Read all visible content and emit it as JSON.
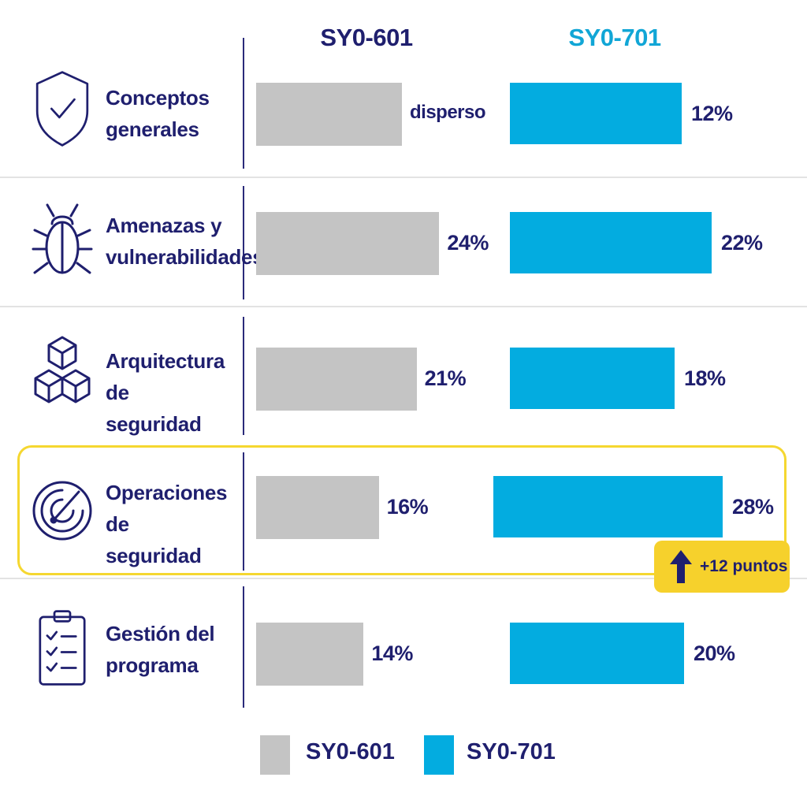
{
  "chart_data": {
    "type": "bar",
    "categories": [
      "Conceptos generales",
      "Amenazas y vulnerabilidades",
      "Arquitectura de seguridad",
      "Operaciones de seguridad",
      "Gestión del programa"
    ],
    "series": [
      {
        "name": "SY0-601",
        "values": [
          null,
          24,
          21,
          16,
          14
        ],
        "labels": [
          "disperso",
          "24%",
          "21%",
          "16%",
          "14%"
        ],
        "color": "#c4c4c4"
      },
      {
        "name": "SY0-701",
        "values": [
          12,
          22,
          18,
          28,
          20
        ],
        "labels": [
          "12%",
          "22%",
          "18%",
          "28%",
          "20%"
        ],
        "color": "#03ace0"
      }
    ],
    "units": "%",
    "annotation": "+12 puntos",
    "highlighted_category": "Operaciones de seguridad",
    "legend_position": "bottom"
  },
  "header": {
    "col_a": "SY0-601",
    "col_b": "SY0-701"
  },
  "rows": [
    {
      "label_line1": "Conceptos",
      "label_line2": "generales",
      "icon": "shield-check-icon"
    },
    {
      "label_line1": "Amenazas y",
      "label_line2": "vulnerabilidades",
      "icon": "bug-icon"
    },
    {
      "label_line1": "Arquitectura de",
      "label_line2": "seguridad",
      "icon": "cubes-icon"
    },
    {
      "label_line1": "Operaciones de",
      "label_line2": "seguridad",
      "icon": "radar-icon"
    },
    {
      "label_line1": "Gestión del",
      "label_line2": "programa",
      "icon": "clipboard-checklist-icon"
    }
  ],
  "legend": {
    "a": "SY0-601",
    "b": "SY0-701"
  },
  "colors": {
    "navy": "#1f1f6e",
    "gray": "#c4c4c4",
    "blue": "#03ace0",
    "highlight": "#f5d730"
  }
}
